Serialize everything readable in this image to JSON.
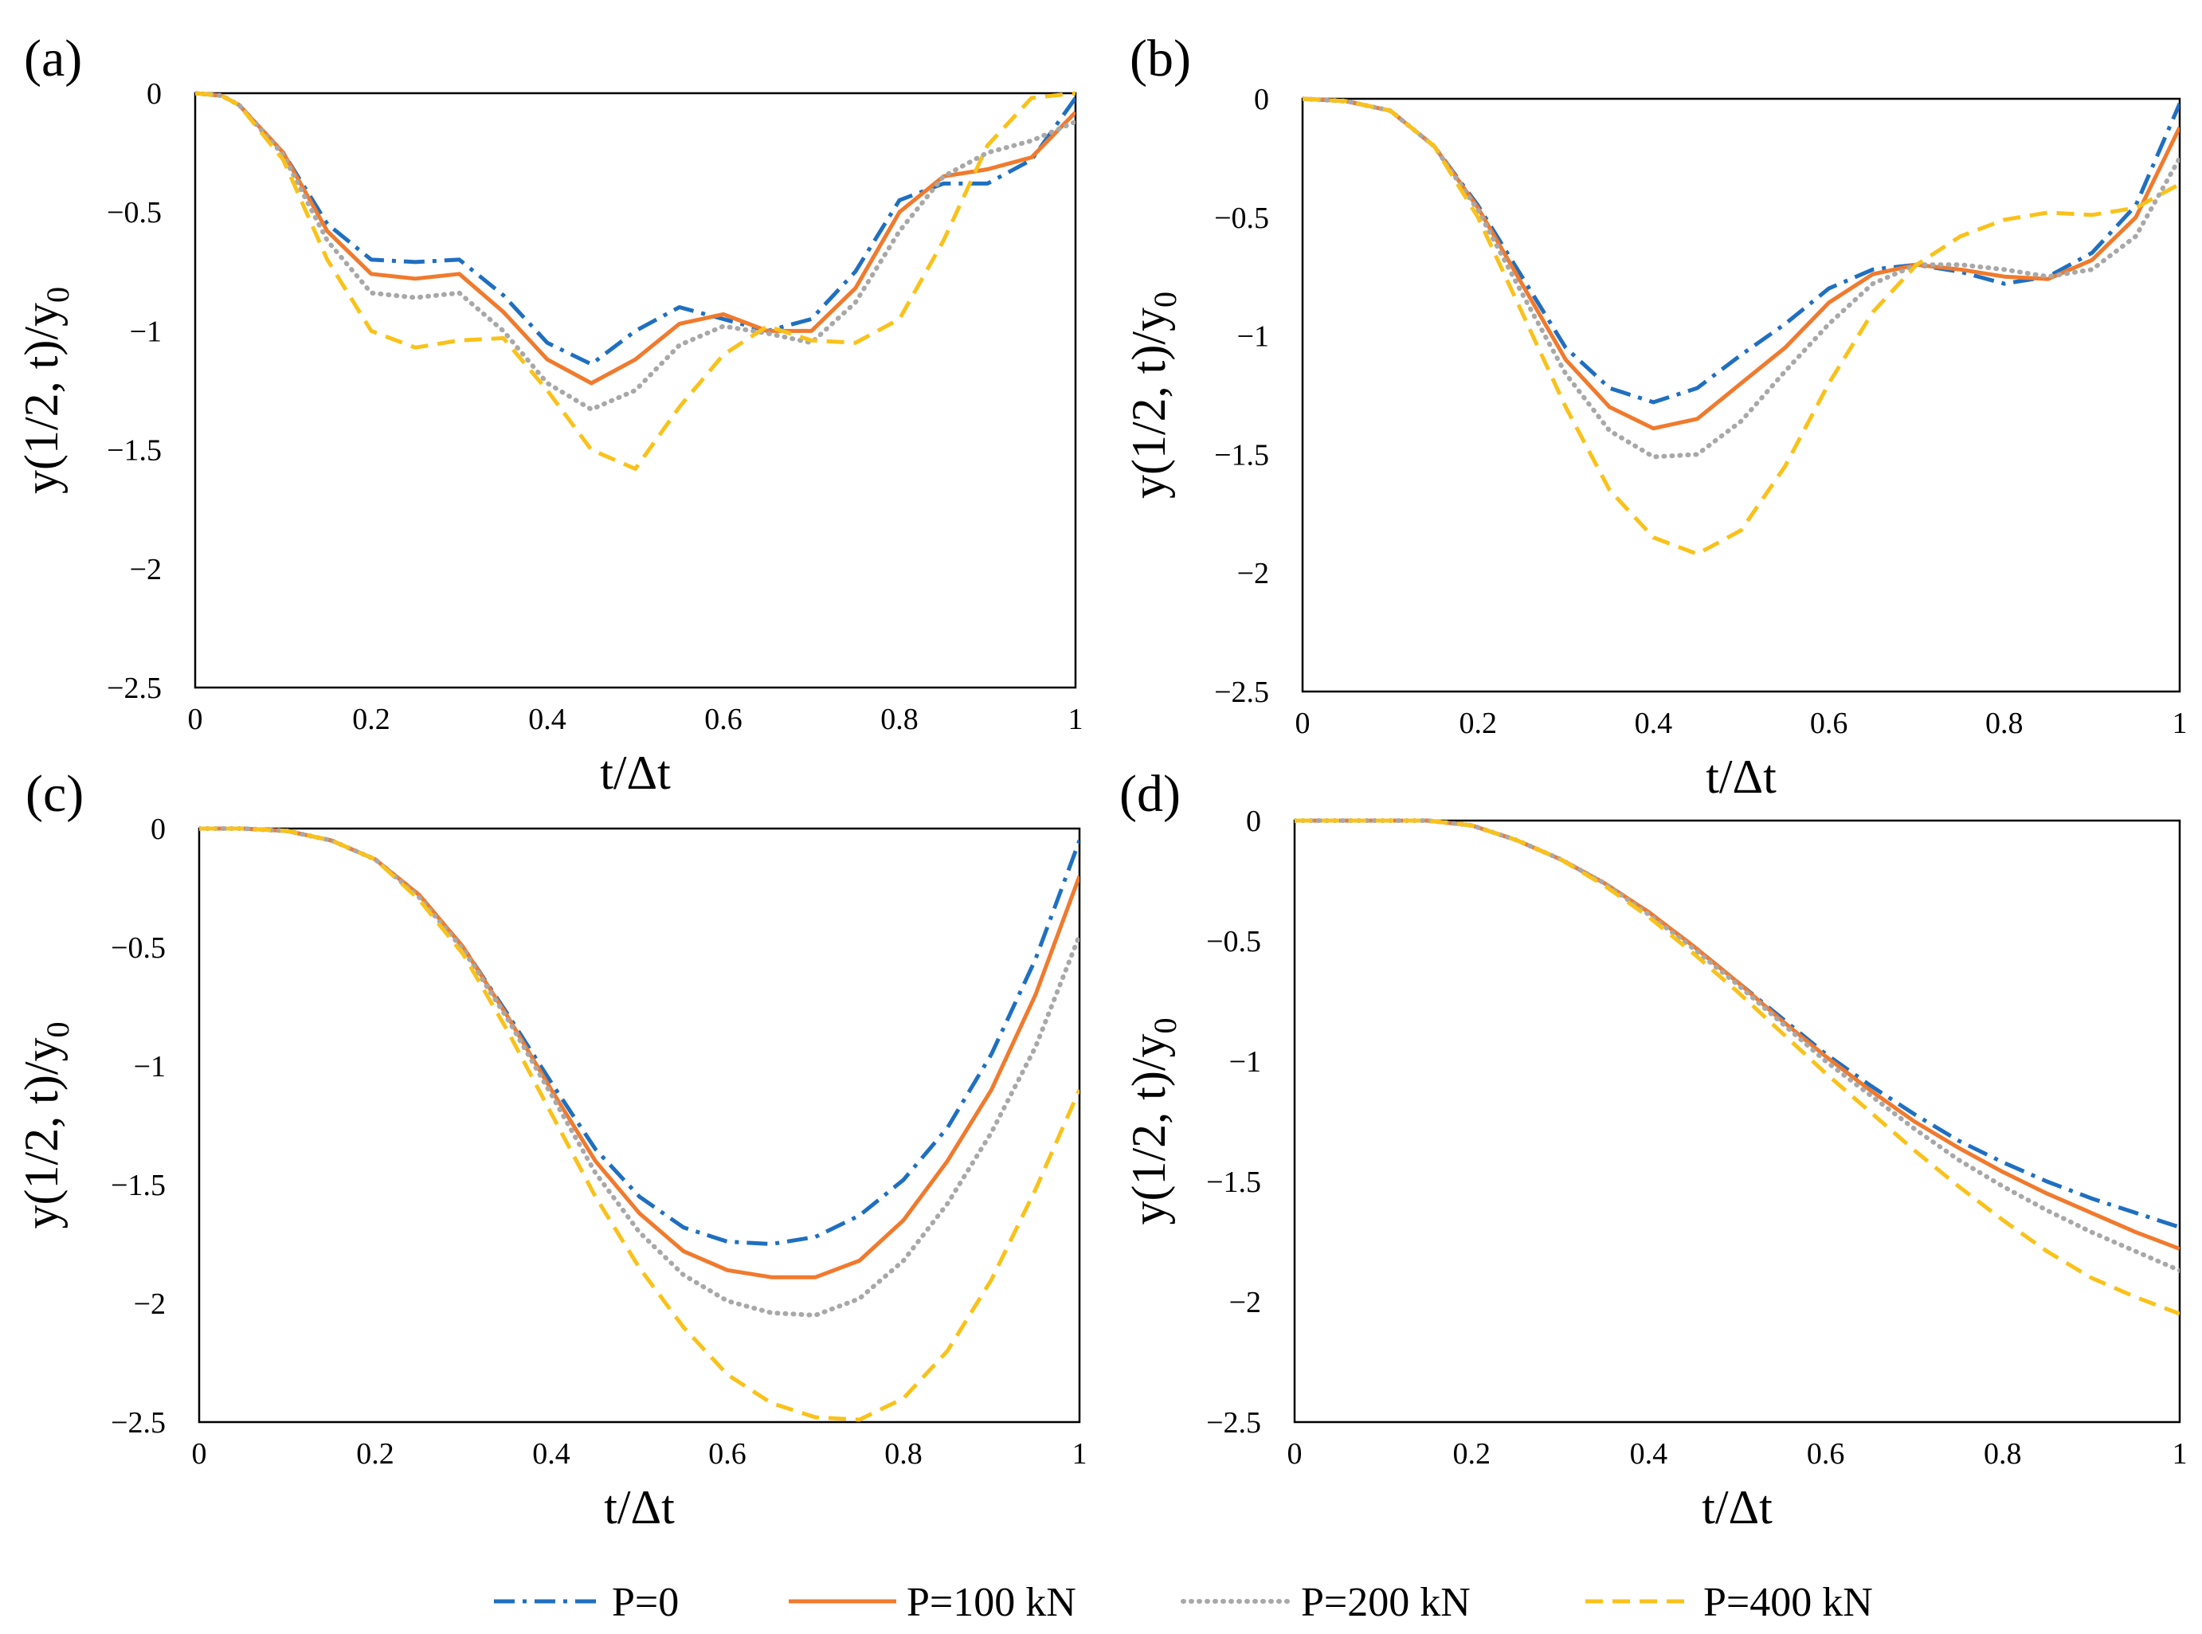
{
  "figure": {
    "legend": [
      {
        "name": "P=0",
        "color": "#1f6fc0",
        "dash": "dashdot"
      },
      {
        "name": "P=100 kN",
        "color": "#f07a2d",
        "dash": "solid"
      },
      {
        "name": "P=200 kN",
        "color": "#a8a8a8",
        "dash": "dot"
      },
      {
        "name": "P=400 kN",
        "color": "#f9c21a",
        "dash": "dash"
      }
    ]
  },
  "chart_data": [
    {
      "type": "line",
      "panel_label": "(a)",
      "xlabel": "t/Δt",
      "ylabel_main": "y(1/2, t)/y",
      "ylabel_sub": "0",
      "xlim": [
        0,
        1
      ],
      "ylim": [
        -2.5,
        0
      ],
      "xticks": [
        "0",
        "0.2",
        "0.4",
        "0.6",
        "0.8",
        "1"
      ],
      "yticks": [
        "0",
        "−0.5",
        "−1",
        "−1.5",
        "−2",
        "−2.5"
      ],
      "x": [
        0,
        0.03,
        0.05,
        0.1,
        0.15,
        0.2,
        0.25,
        0.3,
        0.35,
        0.4,
        0.45,
        0.5,
        0.55,
        0.6,
        0.65,
        0.7,
        0.75,
        0.8,
        0.85,
        0.9,
        0.95,
        1.0
      ],
      "series": [
        {
          "name": "P=0",
          "values": [
            0,
            -0.01,
            -0.05,
            -0.25,
            -0.55,
            -0.7,
            -0.71,
            -0.7,
            -0.85,
            -1.05,
            -1.14,
            -1.0,
            -0.9,
            -0.95,
            -1.0,
            -0.95,
            -0.75,
            -0.45,
            -0.38,
            -0.38,
            -0.28,
            -0.02
          ]
        },
        {
          "name": "P=100 kN",
          "values": [
            0,
            -0.01,
            -0.05,
            -0.25,
            -0.58,
            -0.76,
            -0.78,
            -0.76,
            -0.92,
            -1.12,
            -1.22,
            -1.12,
            -0.97,
            -0.93,
            -1.0,
            -1.0,
            -0.82,
            -0.5,
            -0.35,
            -0.32,
            -0.27,
            -0.08
          ]
        },
        {
          "name": "P=200 kN",
          "values": [
            0,
            -0.01,
            -0.05,
            -0.26,
            -0.62,
            -0.84,
            -0.86,
            -0.84,
            -1.0,
            -1.22,
            -1.33,
            -1.25,
            -1.06,
            -0.98,
            -1.01,
            -1.05,
            -0.88,
            -0.58,
            -0.35,
            -0.25,
            -0.2,
            -0.12
          ]
        },
        {
          "name": "P=400 kN",
          "values": [
            0,
            -0.01,
            -0.05,
            -0.28,
            -0.7,
            -1.0,
            -1.07,
            -1.04,
            -1.03,
            -1.25,
            -1.5,
            -1.58,
            -1.32,
            -1.1,
            -0.98,
            -1.04,
            -1.05,
            -0.95,
            -0.62,
            -0.22,
            -0.02,
            0.0
          ]
        }
      ]
    },
    {
      "type": "line",
      "panel_label": "(b)",
      "xlabel": "t/Δt",
      "ylabel_main": "y(1/2, t)/y",
      "ylabel_sub": "0",
      "xlim": [
        0,
        1
      ],
      "ylim": [
        -2.5,
        0
      ],
      "xticks": [
        "0",
        "0.2",
        "0.4",
        "0.6",
        "0.8",
        "1"
      ],
      "yticks": [
        "0",
        "−0.5",
        "−1",
        "−1.5",
        "−2",
        "−2.5"
      ],
      "x": [
        0,
        0.05,
        0.1,
        0.15,
        0.2,
        0.25,
        0.3,
        0.35,
        0.4,
        0.45,
        0.5,
        0.55,
        0.6,
        0.65,
        0.7,
        0.75,
        0.8,
        0.85,
        0.9,
        0.95,
        1.0
      ],
      "series": [
        {
          "name": "P=0",
          "values": [
            0,
            -0.01,
            -0.05,
            -0.2,
            -0.45,
            -0.75,
            -1.05,
            -1.22,
            -1.28,
            -1.22,
            -1.08,
            -0.95,
            -0.8,
            -0.72,
            -0.7,
            -0.73,
            -0.78,
            -0.75,
            -0.65,
            -0.45,
            -0.02
          ]
        },
        {
          "name": "P=100 kN",
          "values": [
            0,
            -0.01,
            -0.05,
            -0.2,
            -0.46,
            -0.78,
            -1.1,
            -1.3,
            -1.39,
            -1.35,
            -1.2,
            -1.05,
            -0.86,
            -0.74,
            -0.7,
            -0.72,
            -0.75,
            -0.76,
            -0.68,
            -0.5,
            -0.12
          ]
        },
        {
          "name": "P=200 kN",
          "values": [
            0,
            -0.01,
            -0.05,
            -0.2,
            -0.47,
            -0.82,
            -1.16,
            -1.4,
            -1.51,
            -1.5,
            -1.36,
            -1.15,
            -0.95,
            -0.78,
            -0.7,
            -0.7,
            -0.72,
            -0.75,
            -0.72,
            -0.58,
            -0.25
          ]
        },
        {
          "name": "P=400 kN",
          "values": [
            0,
            -0.01,
            -0.05,
            -0.2,
            -0.5,
            -0.9,
            -1.3,
            -1.65,
            -1.85,
            -1.92,
            -1.82,
            -1.55,
            -1.2,
            -0.9,
            -0.7,
            -0.58,
            -0.51,
            -0.48,
            -0.49,
            -0.46,
            -0.36
          ]
        }
      ]
    },
    {
      "type": "line",
      "panel_label": "(c)",
      "xlabel": "t/Δt",
      "ylabel_main": "y(1/2, t)/y",
      "ylabel_sub": "0",
      "xlim": [
        0,
        1
      ],
      "ylim": [
        -2.5,
        0
      ],
      "xticks": [
        "0",
        "0.2",
        "0.4",
        "0.6",
        "0.8",
        "1"
      ],
      "yticks": [
        "0",
        "−0.5",
        "−1",
        "−1.5",
        "−2",
        "−2.5"
      ],
      "x": [
        0,
        0.05,
        0.1,
        0.15,
        0.2,
        0.25,
        0.3,
        0.35,
        0.4,
        0.45,
        0.5,
        0.55,
        0.6,
        0.65,
        0.7,
        0.75,
        0.8,
        0.85,
        0.9,
        0.95,
        1.0
      ],
      "series": [
        {
          "name": "P=0",
          "values": [
            0,
            0,
            -0.01,
            -0.05,
            -0.13,
            -0.28,
            -0.5,
            -0.78,
            -1.07,
            -1.35,
            -1.55,
            -1.68,
            -1.74,
            -1.75,
            -1.72,
            -1.63,
            -1.48,
            -1.26,
            -0.95,
            -0.55,
            -0.05
          ]
        },
        {
          "name": "P=100 kN",
          "values": [
            0,
            0,
            -0.01,
            -0.05,
            -0.13,
            -0.28,
            -0.5,
            -0.79,
            -1.1,
            -1.4,
            -1.62,
            -1.78,
            -1.86,
            -1.89,
            -1.89,
            -1.82,
            -1.65,
            -1.4,
            -1.1,
            -0.7,
            -0.2
          ]
        },
        {
          "name": "P=200 kN",
          "values": [
            0,
            0,
            -0.01,
            -0.05,
            -0.13,
            -0.29,
            -0.51,
            -0.8,
            -1.12,
            -1.45,
            -1.7,
            -1.88,
            -1.99,
            -2.04,
            -2.05,
            -1.98,
            -1.82,
            -1.58,
            -1.28,
            -0.92,
            -0.45
          ]
        },
        {
          "name": "P=400 kN",
          "values": [
            0,
            0,
            -0.01,
            -0.05,
            -0.13,
            -0.3,
            -0.53,
            -0.85,
            -1.2,
            -1.55,
            -1.85,
            -2.1,
            -2.3,
            -2.42,
            -2.48,
            -2.49,
            -2.4,
            -2.2,
            -1.9,
            -1.52,
            -1.1
          ]
        }
      ]
    },
    {
      "type": "line",
      "panel_label": "(d)",
      "xlabel": "t/Δt",
      "ylabel_main": "y(1/2, t)/y",
      "ylabel_sub": "0",
      "xlim": [
        0,
        1
      ],
      "ylim": [
        -2.5,
        0
      ],
      "xticks": [
        "0",
        "0.2",
        "0.4",
        "0.6",
        "0.8",
        "1"
      ],
      "yticks": [
        "0",
        "−0.5",
        "−1",
        "−1.5",
        "−2",
        "−2.5"
      ],
      "x": [
        0,
        0.1,
        0.15,
        0.2,
        0.25,
        0.3,
        0.35,
        0.4,
        0.45,
        0.5,
        0.55,
        0.6,
        0.65,
        0.7,
        0.75,
        0.8,
        0.85,
        0.9,
        0.95,
        1.0
      ],
      "series": [
        {
          "name": "P=0",
          "values": [
            0,
            0,
            0,
            -0.02,
            -0.08,
            -0.16,
            -0.26,
            -0.38,
            -0.52,
            -0.67,
            -0.82,
            -0.97,
            -1.1,
            -1.22,
            -1.33,
            -1.42,
            -1.5,
            -1.57,
            -1.63,
            -1.69
          ]
        },
        {
          "name": "P=100 kN",
          "values": [
            0,
            0,
            0,
            -0.02,
            -0.08,
            -0.16,
            -0.26,
            -0.38,
            -0.52,
            -0.67,
            -0.83,
            -0.98,
            -1.12,
            -1.25,
            -1.36,
            -1.46,
            -1.55,
            -1.63,
            -1.71,
            -1.78
          ]
        },
        {
          "name": "P=200 kN",
          "values": [
            0,
            0,
            0,
            -0.02,
            -0.08,
            -0.16,
            -0.26,
            -0.39,
            -0.53,
            -0.68,
            -0.84,
            -1.0,
            -1.14,
            -1.28,
            -1.41,
            -1.52,
            -1.62,
            -1.71,
            -1.79,
            -1.87
          ]
        },
        {
          "name": "P=400 kN",
          "values": [
            0,
            0,
            0,
            -0.02,
            -0.08,
            -0.16,
            -0.27,
            -0.4,
            -0.55,
            -0.71,
            -0.88,
            -1.05,
            -1.21,
            -1.37,
            -1.52,
            -1.66,
            -1.79,
            -1.9,
            -1.98,
            -2.05
          ]
        }
      ]
    }
  ]
}
